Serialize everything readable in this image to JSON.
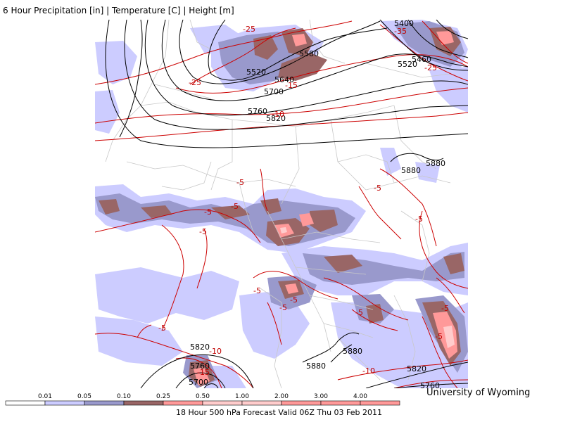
{
  "title": "6 Hour Precipitation [in] | Temperature [C] | Height [m]",
  "footer": "18 Hour 500 hPa Forecast Valid 06Z Thu 03 Feb 2011",
  "credit": "University of Wyoming",
  "colors": {
    "precip_light": "#ccccff",
    "precip_medium": "#9999cc",
    "precip_heavy": "#996666",
    "precip_very_heavy": "#ff9999",
    "precip_extreme": "#ffcccc",
    "height_contour": "#000000",
    "temp_contour": "#cc0000",
    "borders": "#c8c8c8"
  },
  "scale": {
    "ticks": [
      "0.01",
      "0.05",
      "0.10",
      "0.25",
      "0.50",
      "1.00",
      "2.00",
      "3.00",
      "4.00"
    ],
    "colors": [
      "#ffffff",
      "#ccccff",
      "#9999cc",
      "#996666",
      "#ff9999",
      "#ffcccc",
      "#ffcccc",
      "#ff9999",
      "#ff9999",
      "#ff9999"
    ]
  },
  "height_labels": [
    {
      "text": "5400"
    },
    {
      "text": "5520"
    },
    {
      "text": "5520"
    },
    {
      "text": "5580"
    },
    {
      "text": "5640"
    },
    {
      "text": "5460"
    },
    {
      "text": "5700"
    },
    {
      "text": "5760"
    },
    {
      "text": "5820"
    },
    {
      "text": "5880"
    },
    {
      "text": "5880"
    },
    {
      "text": "5820"
    },
    {
      "text": "5760"
    },
    {
      "text": "5700"
    },
    {
      "text": "5880"
    },
    {
      "text": "5880"
    },
    {
      "text": "5820"
    },
    {
      "text": "5760"
    }
  ],
  "temp_labels": [
    {
      "text": "-25"
    },
    {
      "text": "-35"
    },
    {
      "text": "-25"
    },
    {
      "text": "-25"
    },
    {
      "text": "-25"
    },
    {
      "text": "-15"
    },
    {
      "text": "-10"
    },
    {
      "text": "-5"
    },
    {
      "text": "-5"
    },
    {
      "text": "-5"
    },
    {
      "text": "-5"
    },
    {
      "text": "-5"
    },
    {
      "text": "-5"
    },
    {
      "text": "-5"
    },
    {
      "text": "-5"
    },
    {
      "text": "-5"
    },
    {
      "text": "-5"
    },
    {
      "text": "-5"
    },
    {
      "text": "-5"
    },
    {
      "text": "-5"
    },
    {
      "text": "-10"
    },
    {
      "text": "-15"
    },
    {
      "text": "-10"
    }
  ]
}
